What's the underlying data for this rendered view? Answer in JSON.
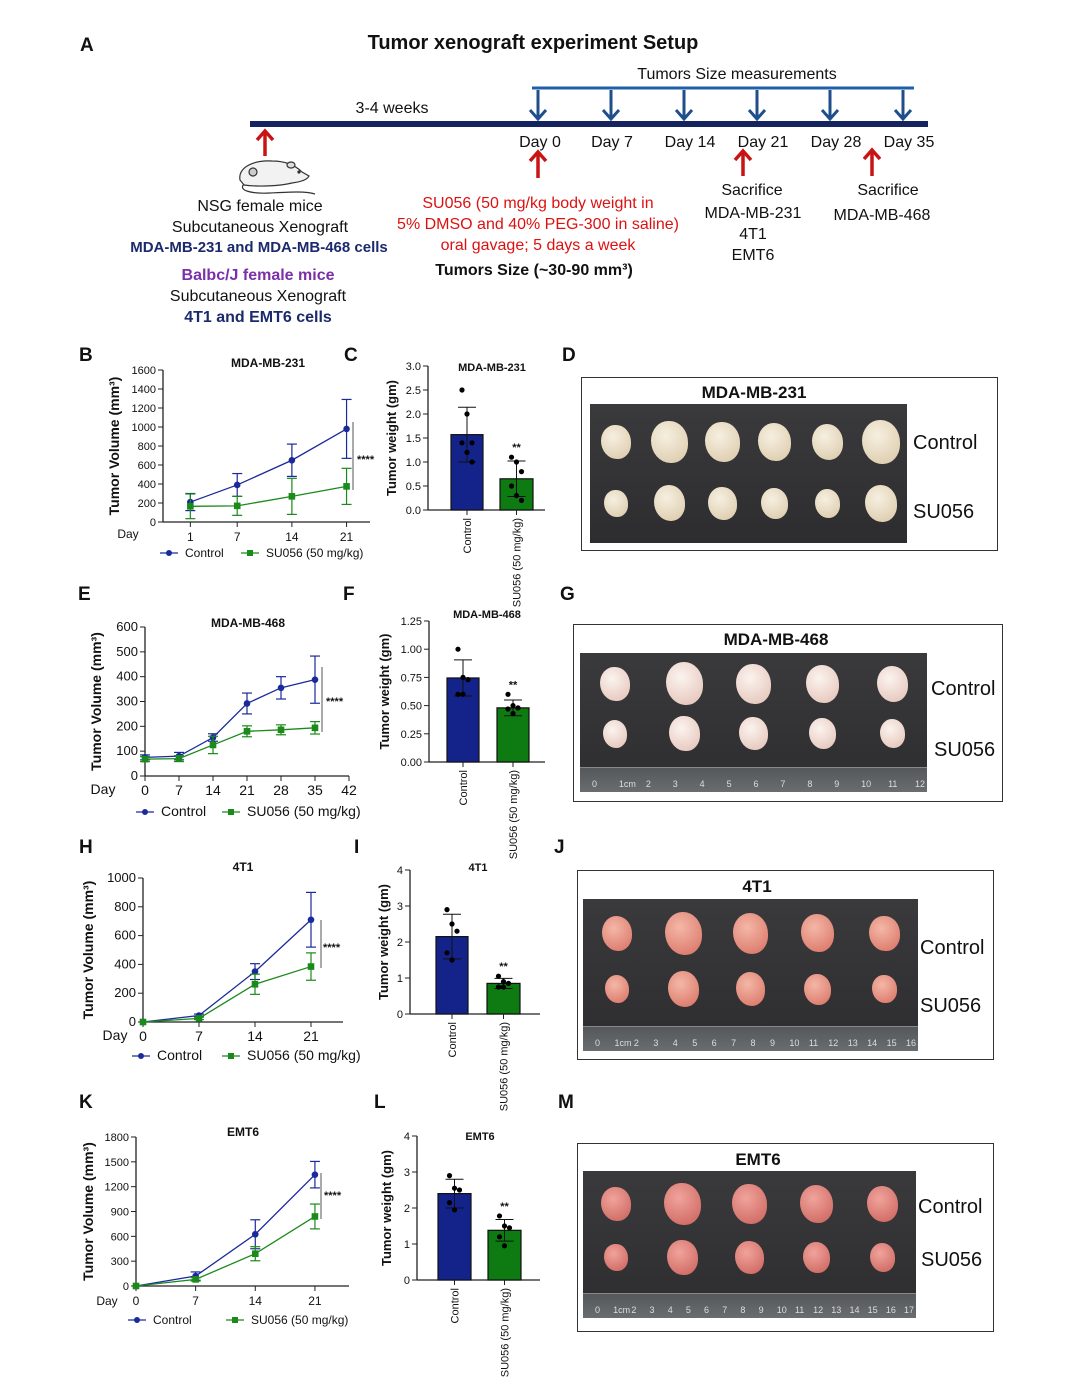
{
  "panel_letters": [
    "A",
    "B",
    "C",
    "D",
    "E",
    "F",
    "G",
    "H",
    "I",
    "J",
    "K",
    "L",
    "M"
  ],
  "setup": {
    "title": "Tumor xenograft experiment Setup",
    "measurements_label": "Tumors Size measurements",
    "weeks_label": "3-4 weeks",
    "days": [
      "Day 0",
      "Day 7",
      "Day 14",
      "Day 21",
      "Day 28",
      "Day 35"
    ],
    "nsg": {
      "line1": "NSG female mice",
      "line2": "Subcutaneous Xenograft",
      "line3": "MDA-MB-231 and MDA-MB-468  cells"
    },
    "balbc": {
      "line1": "Balbc/J female mice",
      "line2": "Subcutaneous Xenograft",
      "line3": "4T1 and EMT6 cells"
    },
    "treatment": {
      "line1": "SU056 (50 mg/kg body weight in",
      "line2": "5% DMSO and 40% PEG-300 in saline)",
      "line3": "oral gavage; 5 days a week"
    },
    "tumor_size": "Tumors Size (~30-90 mm³)",
    "sacrifice1": {
      "label": "Sacrifice",
      "lines": [
        "MDA-MB-231",
        "4T1",
        "EMT6"
      ]
    },
    "sacrifice2": {
      "label": "Sacrifice",
      "lines": [
        "MDA-MB-468"
      ]
    },
    "colors": {
      "navy": "#1b2a6b",
      "arrow_blue": "#1f4e8c",
      "red": "#d11111",
      "purple": "#7b2fa8"
    }
  },
  "photos": [
    {
      "title": "MDA-MB-231",
      "row_labels": [
        "Control",
        "SU056"
      ],
      "ruler": []
    },
    {
      "title": "MDA-MB-468",
      "row_labels": [
        "Control",
        "SU056"
      ],
      "ruler": [
        "0",
        "1cm",
        "2",
        "3",
        "4",
        "5",
        "6",
        "7",
        "8",
        "9",
        "10",
        "11",
        "12"
      ]
    },
    {
      "title": "4T1",
      "row_labels": [
        "Control",
        "SU056"
      ],
      "ruler": [
        "0",
        "1cm",
        "2",
        "3",
        "4",
        "5",
        "6",
        "7",
        "8",
        "9",
        "10",
        "11",
        "12",
        "13",
        "14",
        "15",
        "16"
      ]
    },
    {
      "title": "EMT6",
      "row_labels": [
        "Control",
        "SU056"
      ],
      "ruler": [
        "0",
        "1cm",
        "2",
        "3",
        "4",
        "5",
        "6",
        "7",
        "8",
        "9",
        "10",
        "11",
        "12",
        "13",
        "14",
        "15",
        "16",
        "17"
      ]
    }
  ],
  "chart_data": [
    {
      "id": "B",
      "type": "line",
      "title": "MDA-MB-231",
      "xlabel": "Day",
      "ylabel": "Tumor Volume (mm³)",
      "xlim": [
        -2.5,
        24
      ],
      "ylim": [
        0,
        1600
      ],
      "xticks": [
        "1",
        "7",
        "14",
        "21"
      ],
      "yticks": [
        "0",
        "200",
        "400",
        "600",
        "800",
        "1000",
        "1200",
        "1400",
        "1600"
      ],
      "x": [
        1,
        7,
        14,
        21
      ],
      "significance": "****",
      "series": [
        {
          "name": "Control",
          "color": "#1b2a9b",
          "marker": "circle",
          "values": [
            210,
            390,
            650,
            980
          ],
          "sd": [
            90,
            120,
            170,
            310
          ]
        },
        {
          "name": "SU056 (50 mg/kg)",
          "color": "#1a8a1a",
          "marker": "square",
          "values": [
            165,
            170,
            270,
            375
          ],
          "sd": [
            130,
            100,
            190,
            190
          ]
        }
      ]
    },
    {
      "id": "C",
      "type": "bar",
      "title": "MDA-MB-231",
      "ylabel": "Tumor weight (gm)",
      "ylim": [
        0,
        3
      ],
      "yticks": [
        "0.0",
        "0.5",
        "1.0",
        "1.5",
        "2.0",
        "2.5",
        "3.0"
      ],
      "categories": [
        "Control",
        "SU056 (50 mg/kg)"
      ],
      "values": [
        1.57,
        0.65
      ],
      "sd": [
        0.57,
        0.37
      ],
      "colors": [
        "#13238a",
        "#0d7a12"
      ],
      "points": [
        [
          2.5,
          2.0,
          1.4,
          1.4,
          1.2,
          1.0
        ],
        [
          1.1,
          1.0,
          0.8,
          0.5,
          0.3,
          0.2
        ]
      ],
      "significance": "**"
    },
    {
      "id": "E",
      "type": "line",
      "title": "MDA-MB-468",
      "xlabel": "Day",
      "ylabel": "Tumor Volume (mm³)",
      "xlim": [
        0,
        42
      ],
      "ylim": [
        0,
        600
      ],
      "xticks": [
        "0",
        "7",
        "14",
        "21",
        "28",
        "35",
        "42"
      ],
      "yticks": [
        "0",
        "100",
        "200",
        "300",
        "400",
        "500",
        "600"
      ],
      "x": [
        0,
        7,
        14,
        21,
        28,
        35
      ],
      "significance": "****",
      "series": [
        {
          "name": "Control",
          "color": "#1b2a9b",
          "marker": "circle",
          "values": [
            75,
            80,
            155,
            292,
            355,
            388
          ],
          "sd": [
            10,
            15,
            15,
            42,
            45,
            95
          ]
        },
        {
          "name": "SU056 (50 mg/kg)",
          "color": "#1a8a1a",
          "marker": "square",
          "values": [
            68,
            70,
            125,
            180,
            186,
            194
          ],
          "sd": [
            10,
            12,
            35,
            22,
            20,
            25
          ]
        }
      ]
    },
    {
      "id": "F",
      "type": "bar",
      "title": "MDA-MB-468",
      "ylabel": "Tumor weight (gm)",
      "ylim": [
        0,
        1.25
      ],
      "yticks": [
        "0.00",
        "0.25",
        "0.50",
        "0.75",
        "1.00",
        "1.25"
      ],
      "categories": [
        "Control",
        "SU056 (50 mg/kg)"
      ],
      "values": [
        0.745,
        0.48
      ],
      "sd": [
        0.16,
        0.07
      ],
      "colors": [
        "#13238a",
        "#0d7a12"
      ],
      "points": [
        [
          1.0,
          0.75,
          0.73,
          0.6,
          0.6
        ],
        [
          0.6,
          0.5,
          0.48,
          0.47,
          0.43
        ]
      ],
      "significance": "**"
    },
    {
      "id": "H",
      "type": "line",
      "title": "4T1",
      "xlabel": "Day",
      "ylabel": "Tumor Volume (mm³)",
      "xlim": [
        0,
        25
      ],
      "ylim": [
        0,
        1000
      ],
      "xticks": [
        "0",
        "7",
        "14",
        "21"
      ],
      "yticks": [
        "0",
        "200",
        "400",
        "600",
        "800",
        "1000"
      ],
      "x": [
        0,
        7,
        14,
        21
      ],
      "significance": "****",
      "series": [
        {
          "name": "Control",
          "color": "#1b2a9b",
          "marker": "circle",
          "values": [
            0,
            45,
            350,
            710
          ],
          "sd": [
            0,
            10,
            55,
            190
          ]
        },
        {
          "name": "SU056 (50 mg/kg)",
          "color": "#1a8a1a",
          "marker": "square",
          "values": [
            0,
            25,
            262,
            385
          ],
          "sd": [
            0,
            8,
            70,
            95
          ]
        }
      ]
    },
    {
      "id": "I",
      "type": "bar",
      "title": "4T1",
      "ylabel": "Tumor weight (gm)",
      "ylim": [
        0,
        4
      ],
      "yticks": [
        "0",
        "1",
        "2",
        "3",
        "4"
      ],
      "categories": [
        "Control",
        "SU056 (50 mg/kg)"
      ],
      "values": [
        2.15,
        0.85
      ],
      "sd": [
        0.62,
        0.14
      ],
      "colors": [
        "#13238a",
        "#0d7a12"
      ],
      "points": [
        [
          2.9,
          2.5,
          2.3,
          1.7,
          1.5
        ],
        [
          1.05,
          0.9,
          0.85,
          0.75,
          0.75
        ]
      ],
      "significance": "**"
    },
    {
      "id": "K",
      "type": "line",
      "title": "EMT6",
      "xlabel": "Day",
      "ylabel": "Tumor Volume (mm³)",
      "xlim": [
        0,
        25
      ],
      "ylim": [
        0,
        1800
      ],
      "xticks": [
        "0",
        "7",
        "14",
        "21"
      ],
      "yticks": [
        "0",
        "300",
        "600",
        "900",
        "1200",
        "1500",
        "1800"
      ],
      "x": [
        0,
        7,
        14,
        21
      ],
      "significance": "****",
      "series": [
        {
          "name": "Control",
          "color": "#1b2a9b",
          "marker": "circle",
          "values": [
            0,
            120,
            625,
            1345
          ],
          "sd": [
            0,
            50,
            175,
            160
          ]
        },
        {
          "name": "SU056 (50 mg/kg)",
          "color": "#1a8a1a",
          "marker": "square",
          "values": [
            0,
            80,
            390,
            840
          ],
          "sd": [
            0,
            20,
            85,
            150
          ]
        }
      ]
    },
    {
      "id": "L",
      "type": "bar",
      "title": "EMT6",
      "ylabel": "Tumor weight (gm)",
      "ylim": [
        0,
        4
      ],
      "yticks": [
        "0",
        "1",
        "2",
        "3",
        "4"
      ],
      "categories": [
        "Control",
        "SU056 (50 mg/kg)"
      ],
      "values": [
        2.4,
        1.38
      ],
      "sd": [
        0.4,
        0.3
      ],
      "colors": [
        "#13238a",
        "#0d7a12"
      ],
      "points": [
        [
          2.9,
          2.55,
          2.5,
          2.15,
          1.95
        ],
        [
          1.78,
          1.5,
          1.45,
          1.2,
          0.95
        ]
      ],
      "significance": "**"
    }
  ]
}
